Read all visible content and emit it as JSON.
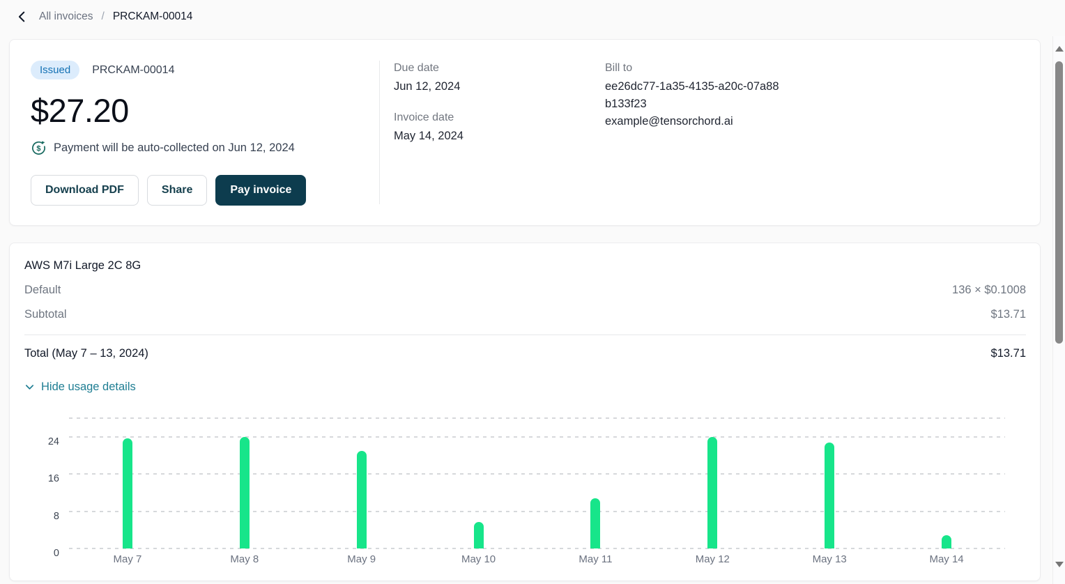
{
  "breadcrumb": {
    "parent": "All invoices",
    "separator": "/",
    "current": "PRCKAM-00014"
  },
  "invoice": {
    "status": "Issued",
    "number": "PRCKAM-00014",
    "amount": "$27.20",
    "auto_collect_note": "Payment will be auto-collected on Jun 12, 2024",
    "buttons": {
      "download": "Download PDF",
      "share": "Share",
      "pay": "Pay invoice"
    },
    "meta": {
      "due_date_label": "Due date",
      "due_date": "Jun 12, 2024",
      "invoice_date_label": "Invoice date",
      "invoice_date": "May 14, 2024",
      "bill_to_label": "Bill to",
      "bill_to_id": "ee26dc77-1a35-4135-a20c-07a88b133f23",
      "bill_to_email": "example@tensorchord.ai"
    }
  },
  "line_items": {
    "product": "AWS M7i Large 2C 8G",
    "rows": [
      {
        "label": "Default",
        "value": "136 × $0.1008"
      },
      {
        "label": "Subtotal",
        "value": "$13.71"
      }
    ],
    "total_label": "Total (May 7 – 13, 2024)",
    "total_value": "$13.71",
    "toggle_label": "Hide usage details"
  },
  "chart_data": {
    "type": "bar",
    "categories": [
      "May 7",
      "May 8",
      "May 9",
      "May 10",
      "May 11",
      "May 12",
      "May 13",
      "May 14"
    ],
    "values": [
      23.7,
      23.9,
      21.0,
      5.7,
      10.8,
      23.9,
      22.8,
      2.9
    ],
    "yticks": [
      0,
      8,
      16,
      24
    ],
    "ylim": [
      0,
      28
    ],
    "grid": "dashed-horizontal",
    "legend": "none",
    "bar_color": "#17e58a",
    "xlabel": "",
    "ylabel": ""
  },
  "colors": {
    "accent_link": "#1f7e93",
    "primary_button": "#0d3c4e",
    "badge_bg": "#dcecfc",
    "badge_text": "#1371b4",
    "bar_green": "#17e58a",
    "icon_teal": "#17695f"
  }
}
